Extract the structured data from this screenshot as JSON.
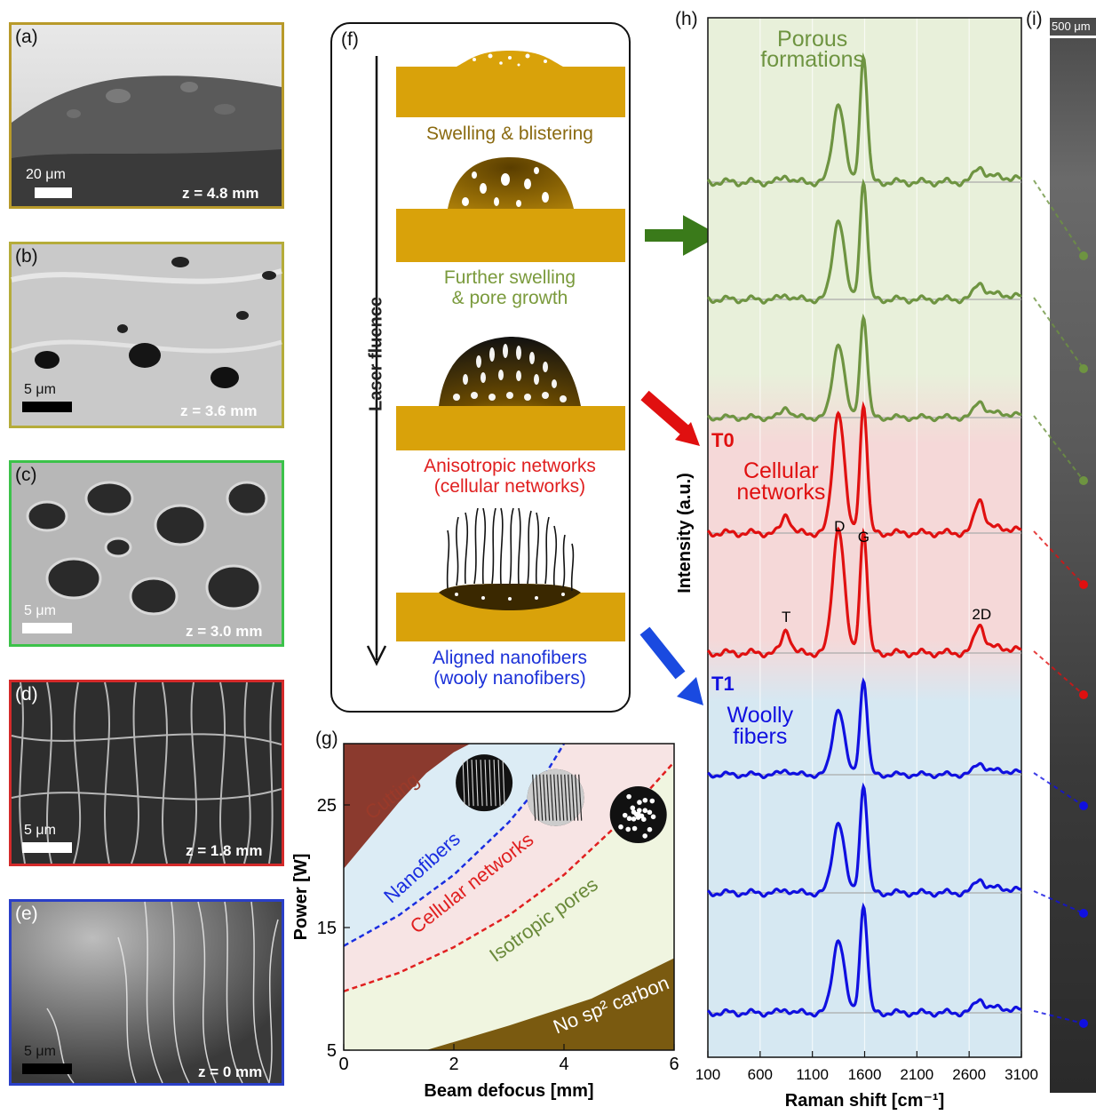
{
  "panels": {
    "a": {
      "label": "(a)",
      "scale": "20 μm",
      "z": "z = 4.8 mm",
      "border": "#b89a2a"
    },
    "b": {
      "label": "(b)",
      "scale": "5 μm",
      "z": "z = 3.6 mm",
      "border": "#b5ac3a"
    },
    "c": {
      "label": "(c)",
      "scale": "5 μm",
      "z": "z = 3.0 mm",
      "border": "#3cc24a"
    },
    "d": {
      "label": "(d)",
      "scale": "5 μm",
      "z": "z = 1.8 mm",
      "border": "#d42a2a"
    },
    "e": {
      "label": "(e)",
      "scale": "5 μm",
      "z": "z = 0 mm",
      "border": "#2a3fc8"
    }
  },
  "schematic": {
    "label": "(f)",
    "axis_label": "Laser fluence",
    "stages": [
      {
        "caption": [
          "Swelling & blistering"
        ],
        "color": "#8a6a10"
      },
      {
        "caption": [
          "Further swelling",
          "& pore growth"
        ],
        "color": "#7a9a3c"
      },
      {
        "caption": [
          "Anisotropic networks",
          "(cellular networks)"
        ],
        "color": "#e02020"
      },
      {
        "caption": [
          "Aligned nanofibers",
          "(wooly nanofibers)"
        ],
        "color": "#1a30d8"
      }
    ],
    "colors": {
      "substrate": "#d9a20a",
      "dark": "#111111"
    }
  },
  "chart_data": [
    {
      "type": "area",
      "panel": "(g)",
      "xlabel": "Beam defocus [mm]",
      "ylabel": "Power [W]",
      "xlim": [
        0,
        6
      ],
      "ylim": [
        5,
        30
      ],
      "xticks": [
        0,
        2,
        4,
        6
      ],
      "yticks": [
        5,
        15,
        25
      ],
      "regions": [
        {
          "name": "Cutting",
          "color": "#9a3a2a"
        },
        {
          "name": "Nanofibers",
          "color": "#1a2ee0"
        },
        {
          "name": "Cellular networks",
          "color": "#e02020"
        },
        {
          "name": "Isotropic pores",
          "color": "#6a8a3a"
        },
        {
          "name": "No sp² carbon",
          "color": "#ffffff"
        }
      ],
      "boundaries": [
        {
          "name": "cutting",
          "x": [
            0,
            0.5,
            1,
            1.5,
            2,
            2.3
          ],
          "y": [
            19.8,
            22.5,
            25.2,
            27.6,
            29.3,
            30
          ]
        },
        {
          "name": "nanofibers",
          "x": [
            0,
            1,
            2,
            3,
            3.5,
            4
          ],
          "y": [
            13.5,
            16,
            19.3,
            23.6,
            26.3,
            30
          ]
        },
        {
          "name": "cellular",
          "x": [
            0,
            1,
            2,
            3,
            4,
            5,
            6
          ],
          "y": [
            9.8,
            11.3,
            13.4,
            16,
            19.3,
            23.5,
            28.5
          ]
        },
        {
          "name": "nosp2",
          "x": [
            1.5,
            3,
            4.5,
            6
          ],
          "y": [
            5,
            7,
            9.2,
            12.5
          ]
        }
      ]
    },
    {
      "type": "line",
      "panel": "(h)",
      "xlabel": "Raman shift [cm⁻¹]",
      "ylabel": "Intensity (a.u.)",
      "xlim": [
        100,
        3100
      ],
      "xticks": [
        100,
        600,
        1100,
        1600,
        2100,
        2600,
        3100
      ],
      "peak_labels": [
        "D",
        "G",
        "T",
        "2D"
      ],
      "group_labels": [
        {
          "tag": "",
          "text": [
            "Porous",
            "formations"
          ],
          "color": "#6e9441"
        },
        {
          "tag": "T0",
          "text": [
            "Cellular",
            "networks"
          ],
          "color": "#e01010"
        },
        {
          "tag": "T1",
          "text": [
            "Woolly",
            "fibers"
          ],
          "color": "#1010e0"
        }
      ],
      "series": [
        {
          "group": "Porous formations",
          "color": "#6e9441",
          "D": 0.6,
          "G": 0.95,
          "D2": 0.1,
          "T": 0.05
        },
        {
          "group": "Porous formations",
          "color": "#6e9441",
          "D": 0.65,
          "G": 0.95,
          "D2": 0.12,
          "T": 0.04
        },
        {
          "group": "Porous formations",
          "color": "#6e9441",
          "D": 0.7,
          "G": 0.95,
          "D2": 0.14,
          "T": 0.1
        },
        {
          "group": "Cellular networks",
          "color": "#e01010",
          "D": 0.95,
          "G": 1.0,
          "D2": 0.25,
          "T": 0.15
        },
        {
          "group": "Cellular networks",
          "color": "#e01010",
          "D": 0.95,
          "G": 0.92,
          "D2": 0.2,
          "T": 0.18
        },
        {
          "group": "Woolly fibers",
          "color": "#1010e0",
          "D": 0.65,
          "G": 0.93,
          "D2": 0.1,
          "T": 0.05
        },
        {
          "group": "Woolly fibers",
          "color": "#1010e0",
          "D": 0.6,
          "G": 0.9,
          "D2": 0.1,
          "T": 0.03
        },
        {
          "group": "Woolly fibers",
          "color": "#1010e0",
          "D": 0.62,
          "G": 0.9,
          "D2": 0.1,
          "T": 0.03
        }
      ]
    }
  ],
  "panel_h": {
    "label": "(h)"
  },
  "panel_i": {
    "label": "(i)",
    "scale": "500 μm"
  }
}
